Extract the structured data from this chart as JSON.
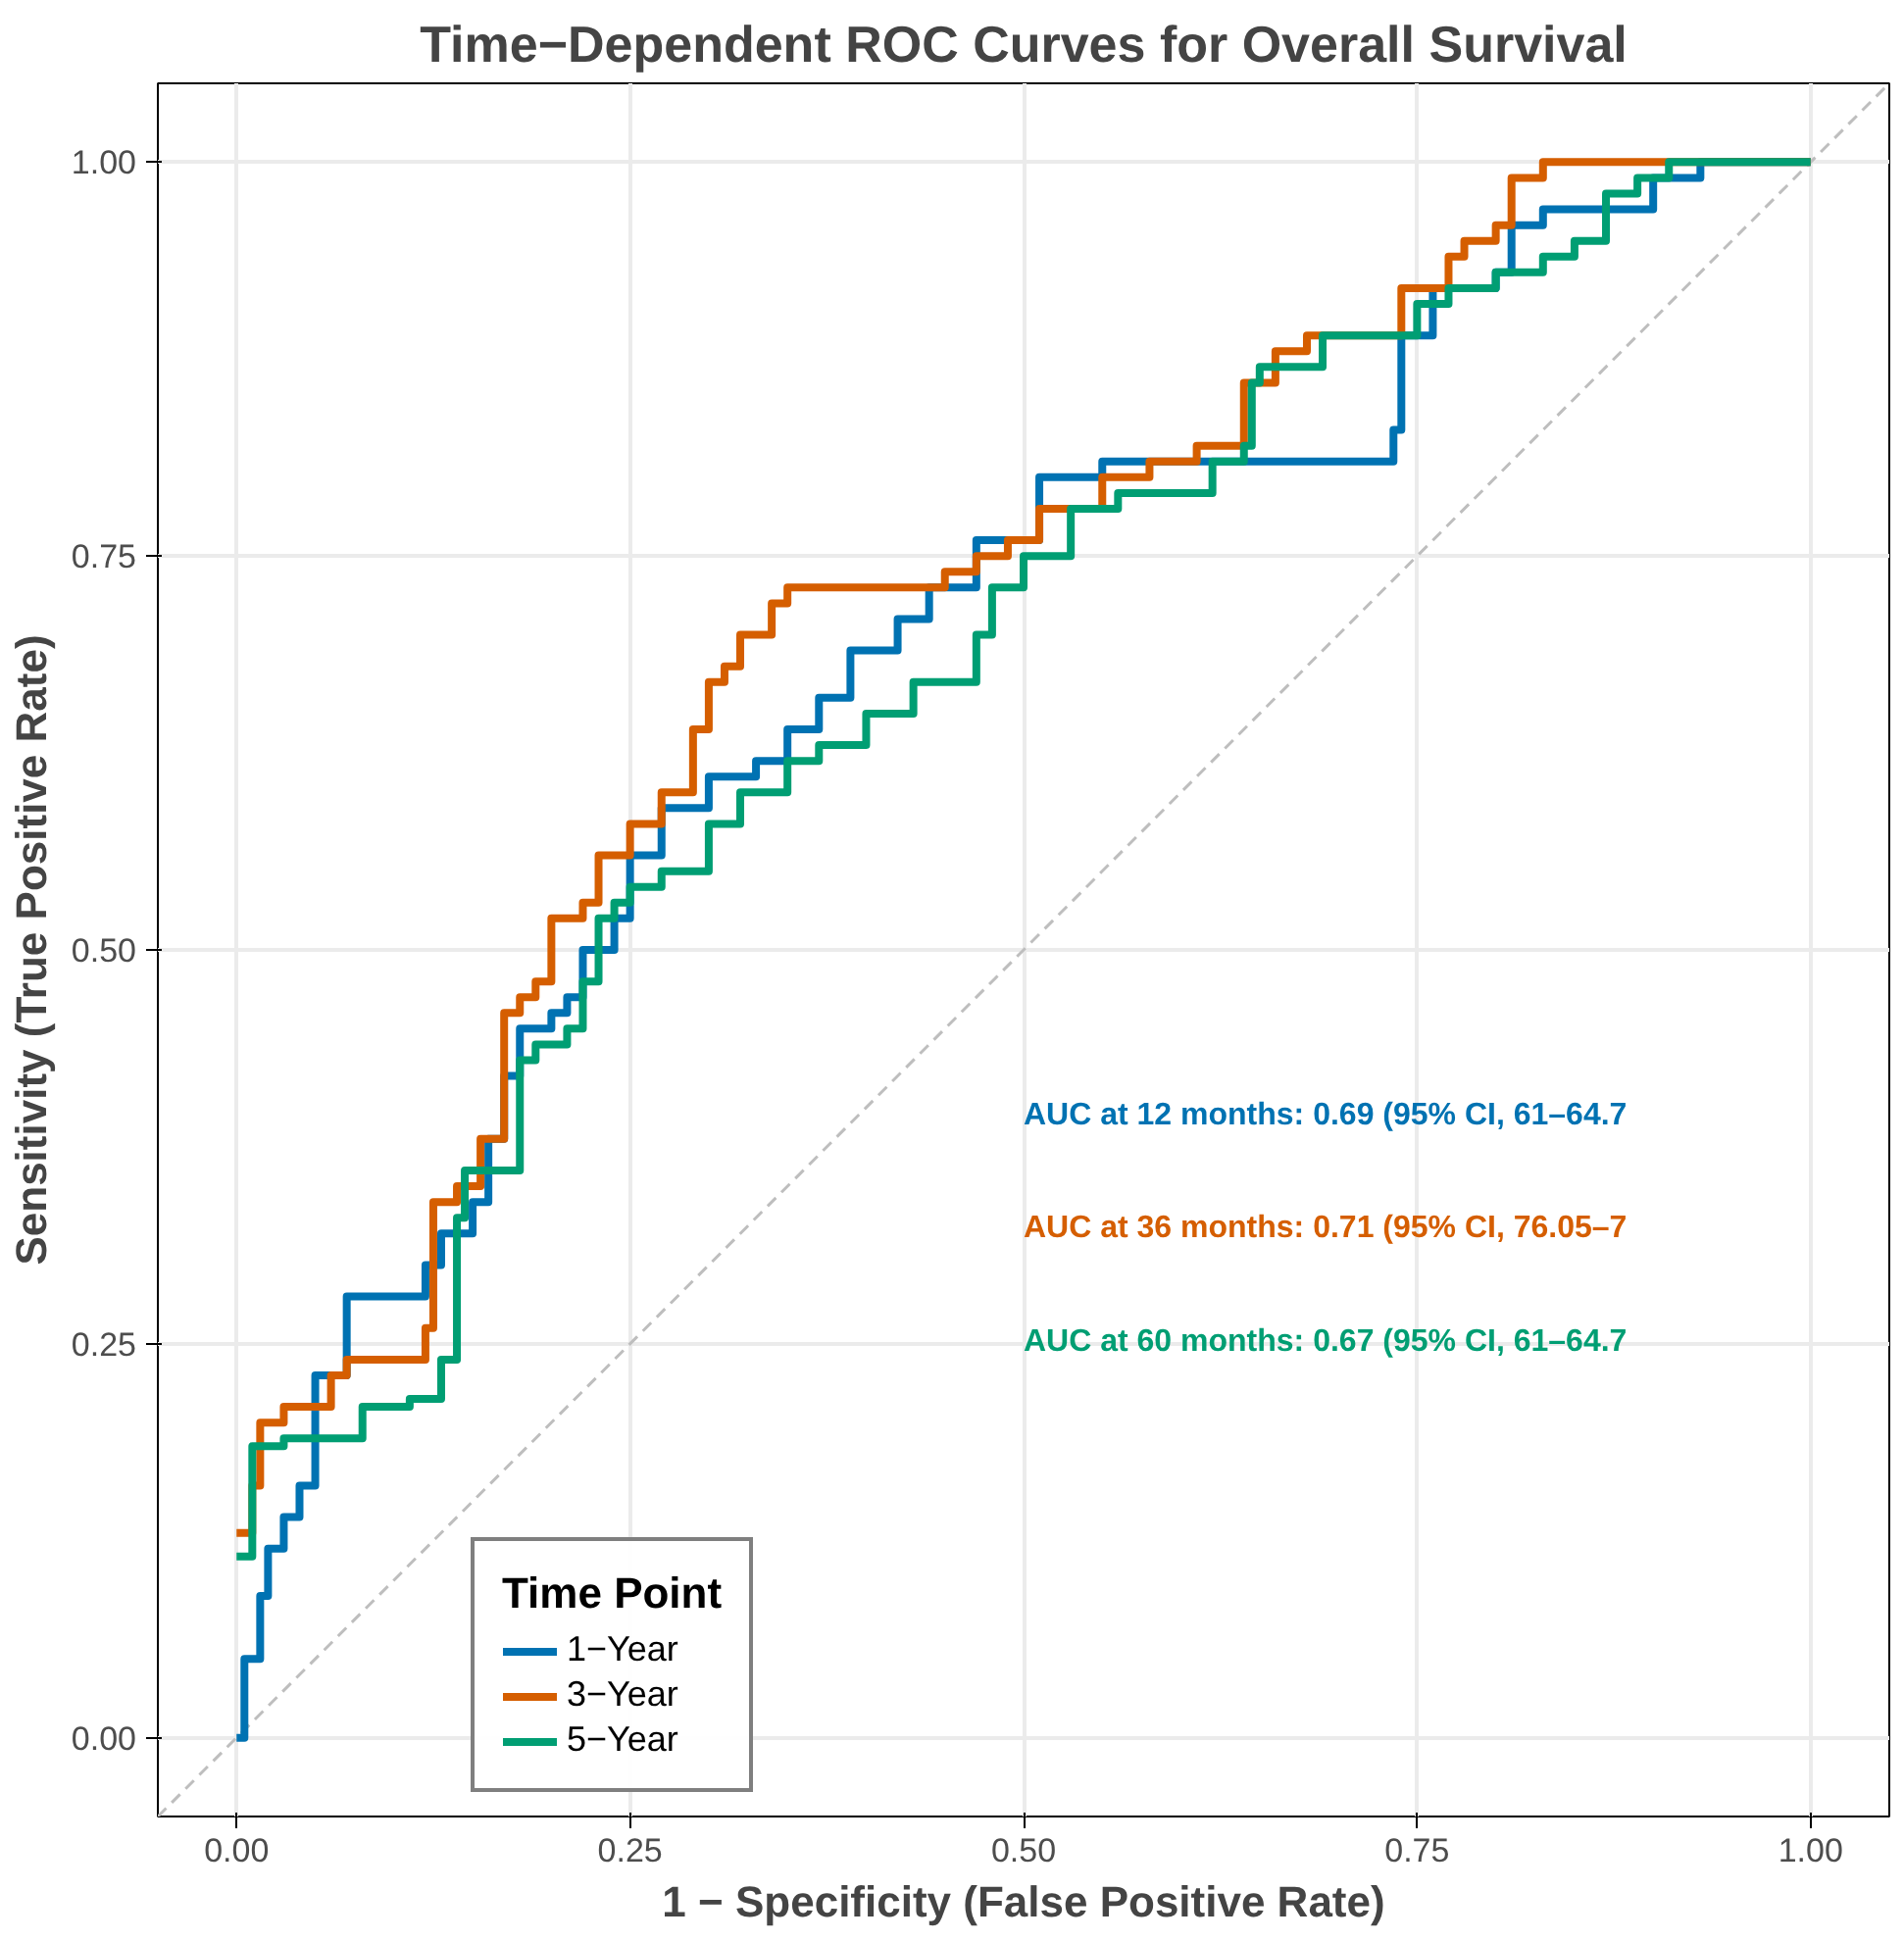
{
  "chart_data": {
    "type": "step",
    "title": "Time−Dependent ROC Curves for Overall Survival",
    "xlabel": "1 − Specificity (False Positive Rate)",
    "ylabel": "Sensitivity (True Positive Rate)",
    "legend_title": "Time Point",
    "legend": "bottom left",
    "grid": true,
    "xlim": [
      -0.05,
      1.05
    ],
    "ylim": [
      -0.05,
      1.05
    ],
    "xticks": [
      {
        "value": 0,
        "label": "0.00"
      },
      {
        "value": 0.25,
        "label": "0.25"
      },
      {
        "value": 0.5,
        "label": "0.50"
      },
      {
        "value": 0.75,
        "label": "0.75"
      },
      {
        "value": 1,
        "label": "1.00"
      }
    ],
    "yticks": [
      {
        "value": 0,
        "label": "0.00"
      },
      {
        "value": 0.25,
        "label": "0.25"
      },
      {
        "value": 0.5,
        "label": "0.50"
      },
      {
        "value": 0.75,
        "label": "0.75"
      },
      {
        "value": 1,
        "label": "1.00"
      }
    ],
    "series": [
      {
        "type": "line",
        "color": "#bebebe",
        "line_style": "dashed",
        "x": [
          -0.05,
          1.05
        ],
        "values": [
          -0.05,
          1.05
        ]
      },
      {
        "name": "1−Year",
        "color": "#0072b2",
        "x": [
          0,
          0.005,
          0.015,
          0.02,
          0.03,
          0.04,
          0.05,
          0.07,
          0.12,
          0.13,
          0.15,
          0.16,
          0.17,
          0.18,
          0.2,
          0.21,
          0.22,
          0.24,
          0.25,
          0.27,
          0.3,
          0.33,
          0.35,
          0.37,
          0.39,
          0.42,
          0.44,
          0.47,
          0.51,
          0.55,
          0.73,
          0.735,
          0.74,
          0.76,
          0.8,
          0.81,
          0.83,
          0.89,
          0.9,
          0.93,
          1.0
        ],
        "values": [
          0,
          0.05,
          0.09,
          0.12,
          0.14,
          0.16,
          0.23,
          0.28,
          0.3,
          0.32,
          0.34,
          0.38,
          0.42,
          0.45,
          0.46,
          0.47,
          0.5,
          0.52,
          0.56,
          0.59,
          0.61,
          0.62,
          0.64,
          0.66,
          0.69,
          0.71,
          0.73,
          0.76,
          0.8,
          0.81,
          0.81,
          0.83,
          0.89,
          0.92,
          0.93,
          0.96,
          0.97,
          0.97,
          0.99,
          1.0,
          1.0
        ]
      },
      {
        "name": "3−Year",
        "color": "#d55e00",
        "x": [
          0,
          0.01,
          0.015,
          0.03,
          0.06,
          0.07,
          0.12,
          0.125,
          0.14,
          0.155,
          0.17,
          0.18,
          0.19,
          0.2,
          0.22,
          0.23,
          0.25,
          0.27,
          0.29,
          0.3,
          0.31,
          0.32,
          0.34,
          0.35,
          0.45,
          0.47,
          0.49,
          0.51,
          0.55,
          0.58,
          0.61,
          0.64,
          0.66,
          0.68,
          0.74,
          0.77,
          0.78,
          0.8,
          0.81,
          0.83,
          1.0
        ],
        "values": [
          0.13,
          0.16,
          0.2,
          0.21,
          0.23,
          0.24,
          0.26,
          0.34,
          0.35,
          0.38,
          0.46,
          0.47,
          0.48,
          0.52,
          0.53,
          0.56,
          0.58,
          0.6,
          0.64,
          0.67,
          0.68,
          0.7,
          0.72,
          0.73,
          0.74,
          0.75,
          0.76,
          0.78,
          0.8,
          0.81,
          0.82,
          0.86,
          0.88,
          0.89,
          0.92,
          0.94,
          0.95,
          0.96,
          0.99,
          1.0,
          1.0
        ]
      },
      {
        "name": "5−Year",
        "color": "#009e73",
        "x": [
          0,
          0.01,
          0.03,
          0.08,
          0.11,
          0.13,
          0.14,
          0.145,
          0.18,
          0.19,
          0.21,
          0.22,
          0.23,
          0.24,
          0.25,
          0.27,
          0.3,
          0.32,
          0.35,
          0.37,
          0.4,
          0.43,
          0.47,
          0.48,
          0.5,
          0.53,
          0.56,
          0.62,
          0.64,
          0.645,
          0.65,
          0.69,
          0.75,
          0.77,
          0.8,
          0.83,
          0.85,
          0.87,
          0.89,
          0.91,
          1.0
        ],
        "values": [
          0.115,
          0.185,
          0.19,
          0.21,
          0.215,
          0.24,
          0.33,
          0.36,
          0.43,
          0.44,
          0.45,
          0.48,
          0.52,
          0.53,
          0.54,
          0.55,
          0.58,
          0.6,
          0.62,
          0.63,
          0.65,
          0.67,
          0.7,
          0.73,
          0.75,
          0.78,
          0.79,
          0.81,
          0.82,
          0.86,
          0.87,
          0.89,
          0.91,
          0.92,
          0.93,
          0.94,
          0.95,
          0.98,
          0.99,
          1.0,
          1.0
        ]
      }
    ],
    "annotations": [
      "AUC at 12 months: 0.69 (95% CI, 61–64.7",
      "AUC at 36 months: 0.71 (95% CI, 76.05–7",
      "AUC at 60 months: 0.67 (95% CI, 61–64.7"
    ]
  }
}
